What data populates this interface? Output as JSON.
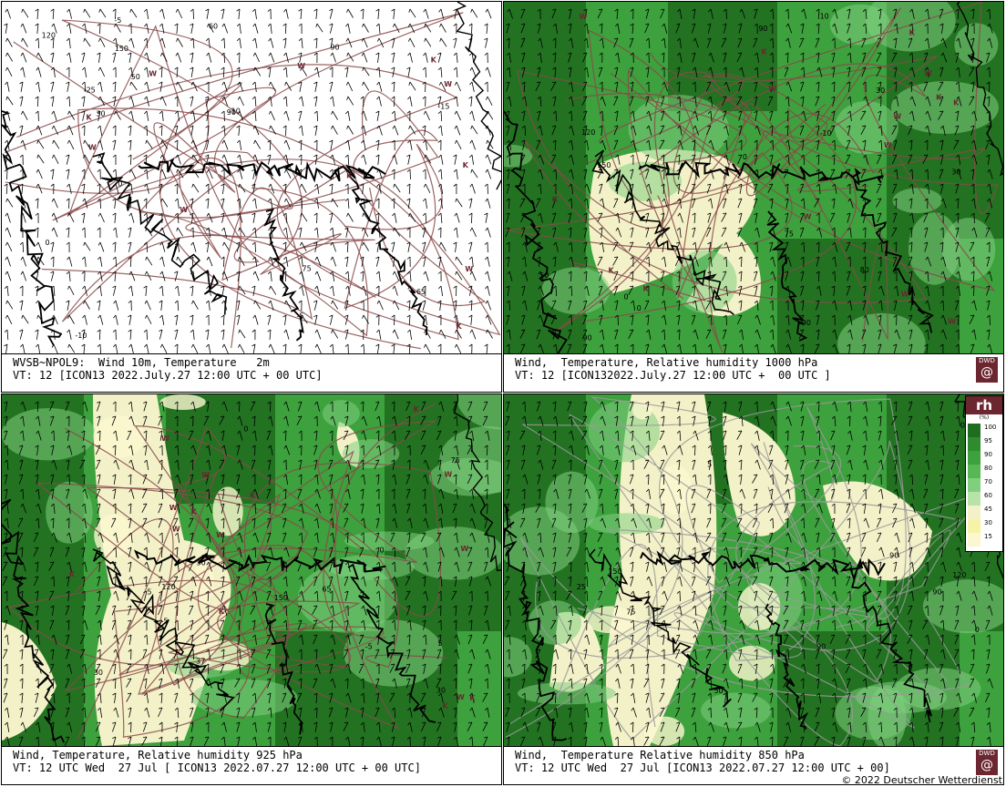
{
  "panels": [
    {
      "id": "p1",
      "caption_line1": "WVSB~NPOL9:  Wind 10m, Temperature   2m",
      "caption_line2": "VT: 12 [ICON13 2022.July.27 12:00 UTC + 00 UTC]",
      "background": "white",
      "has_logo": false,
      "labels": [
        "150",
        "90",
        "90",
        "65",
        "30",
        "120",
        "0",
        "0",
        "-5",
        "-10",
        "-15",
        "-10",
        "60",
        "-5",
        "-25",
        "50",
        "75"
      ],
      "marker_letters": [
        "W",
        "W",
        "W",
        "W",
        "K",
        "K",
        "K",
        "W",
        "K",
        "W",
        "K"
      ]
    },
    {
      "id": "p2",
      "caption_line1": "Wind,  Temperature, Relative humidity 1000 hPa",
      "caption_line2": "VT: 12 [ICON132022.July.27 12:00 UTC +  00 UTC ]",
      "background": "humidity",
      "has_logo": true,
      "labels": [
        "90",
        "150",
        "90",
        "80",
        "120",
        "0",
        "30",
        "-10",
        "0",
        "75",
        "50",
        "30",
        "0",
        "10",
        "90"
      ],
      "marker_letters": [
        "W",
        "W",
        "W",
        "K",
        "K",
        "K",
        "W",
        "K",
        "W",
        "W",
        "W",
        "K",
        "K",
        "W",
        "K"
      ]
    },
    {
      "id": "p3",
      "caption_line1": "Wind, Temperature, Relative humidity 925 hPa",
      "caption_line2": "VT: 12 UTC Wed  27 Jul [ ICON13 2022.07.27 12:00 UTC + 00 UTC]",
      "background": "humidity",
      "has_logo": false,
      "labels": [
        "150",
        "37",
        "5",
        "-5",
        "120",
        "5",
        "75",
        "30",
        "-5",
        "0",
        "0",
        "65",
        "30",
        "30"
      ],
      "marker_letters": [
        "W",
        "K",
        "W",
        "K",
        "W",
        "K",
        "W",
        "W",
        "K",
        "W",
        "K",
        "K",
        "W",
        "K",
        "W"
      ]
    },
    {
      "id": "p4",
      "caption_line1": "Wind,  Temperature Relative humidity 850 hPa",
      "caption_line2": "VT: 12 UTC Wed  27 Jul [ICON13 2022.07.27 12:00 UTC + 00]",
      "background": "humidity",
      "has_logo": true,
      "labels": [
        "90",
        "25",
        "150",
        "90",
        "5",
        "120",
        "0",
        "0",
        "75",
        "50",
        "90",
        "5"
      ],
      "marker_letters": []
    }
  ],
  "logo_text": "DWD",
  "legend": {
    "title": "rh",
    "unit": "(%)",
    "levels": [
      {
        "label": "100",
        "color": "#1f6d1f"
      },
      {
        "label": "95",
        "color": "#2e8b2e"
      },
      {
        "label": "90",
        "color": "#3da13d"
      },
      {
        "label": "80",
        "color": "#55b855"
      },
      {
        "label": "70",
        "color": "#7fcf7f"
      },
      {
        "label": "60",
        "color": "#b8e3a8"
      },
      {
        "label": "45",
        "color": "#f3f1c8"
      },
      {
        "label": "30",
        "color": "#f7f3a6"
      },
      {
        "label": "15",
        "color": "#fbf7cf"
      }
    ]
  },
  "copyright": "© 2022 Deutscher Wetterdienst",
  "colors": {
    "contour": "#8a4a4a",
    "coast": "#000000",
    "dwd": "#6b2630",
    "moist_dark": "#1f6d1f",
    "moist_mid": "#3da13d",
    "moist_light": "#7fcf7f",
    "dry": "#f3f1c8",
    "dry_pale": "#fbf7cf"
  }
}
